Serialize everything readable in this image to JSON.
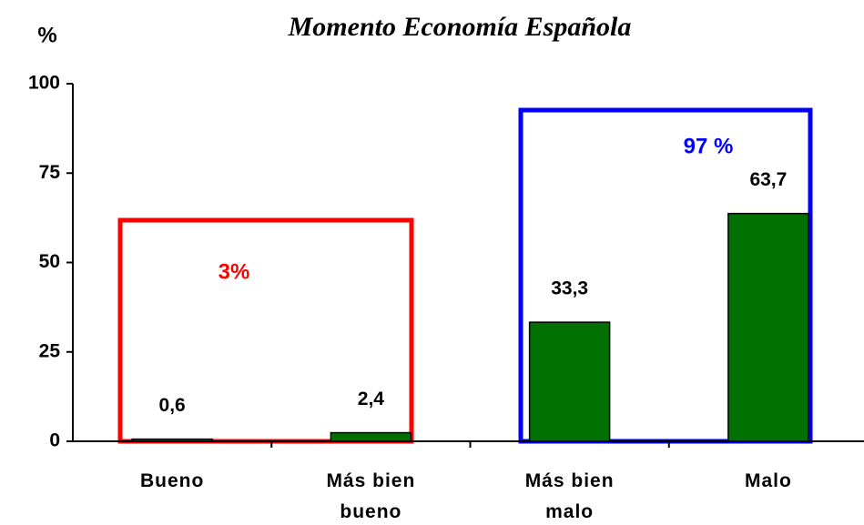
{
  "chart_data": {
    "type": "bar",
    "title": "Momento Economía Española",
    "y_axis_label": "%",
    "categories": [
      "Bueno",
      "Más bien\nbueno",
      "Más bien\nmalo",
      "Malo"
    ],
    "values": [
      0.6,
      2.4,
      33.3,
      63.7
    ],
    "value_labels": [
      "0,6",
      "2,4",
      "33,3",
      "63,7"
    ],
    "color": "#007000",
    "ylim": [
      0,
      100
    ],
    "yticks": [
      0,
      25,
      50,
      75,
      100
    ],
    "annotations": [
      {
        "text": "3%",
        "color": "#ff0000"
      },
      {
        "text": "97 %",
        "color": "#0000ff"
      }
    ]
  }
}
